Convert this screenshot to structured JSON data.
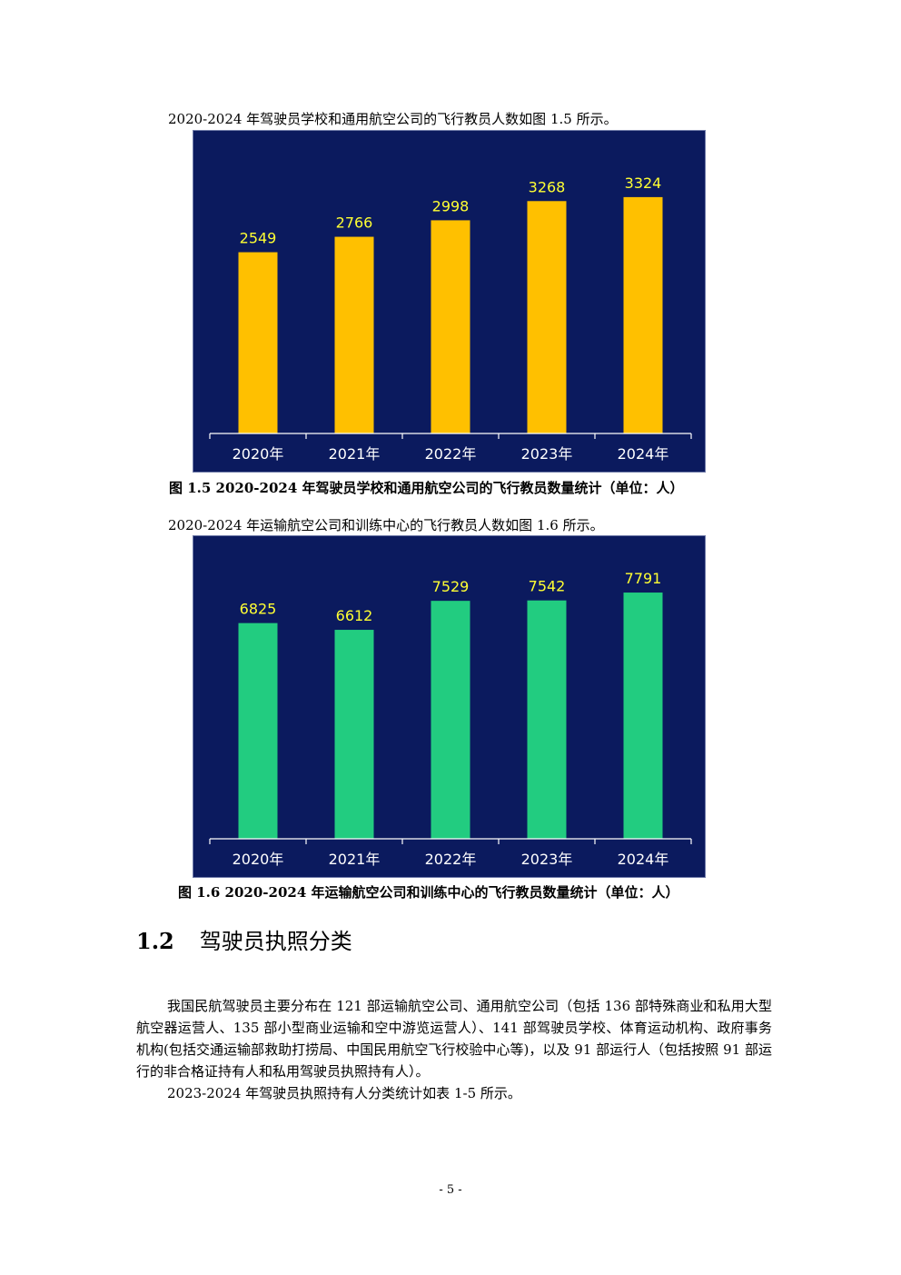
{
  "chart1_intro": "2020-2024 年驾驶员学校和通用航空公司的飞行教员人数如图 1.5 所示。",
  "chart1_caption": "图 1.5 2020-2024 年驾驶员学校和通用航空公司的飞行教员数量统计（单位：人）",
  "chart2_intro": "2020-2024 年运输航空公司和训练中心的飞行教员人数如图 1.6 所示。",
  "chart2_caption": "图 1.6 2020-2024 年运输航空公司和训练中心的飞行教员数量统计（单位：人）",
  "section": {
    "number": "1.2",
    "title": "驾驶员执照分类"
  },
  "paragraphs": [
    "我国民航驾驶员主要分布在 121 部运输航空公司、通用航空公司（包括 136 部特殊商业和私用大型航空器运营人、135 部小型商业运输和空中游览运营人）、141 部驾驶员学校、体育运动机构、政府事务机构(包括交通运输部救助打捞局、中国民用航空飞行校验中心等)，以及 91 部运行人（包括按照 91 部运行的非合格证持有人和私用驾驶员执照持有人）。",
    "2023-2024 年驾驶员执照持有人分类统计如表 1-5 所示。"
  ],
  "page_number": "- 5 -",
  "chart_data": [
    {
      "type": "bar",
      "categories": [
        "2020年",
        "2021年",
        "2022年",
        "2023年",
        "2024年"
      ],
      "values": [
        2549,
        2766,
        2998,
        3268,
        3324
      ],
      "bar_color": "#ffc000",
      "label_color": "#ffff33",
      "background": "#0b1a5e",
      "ylim": [
        0,
        4000
      ],
      "grid": false,
      "legend": "none"
    },
    {
      "type": "bar",
      "categories": [
        "2020年",
        "2021年",
        "2022年",
        "2023年",
        "2024年"
      ],
      "values": [
        6825,
        6612,
        7529,
        7542,
        7791
      ],
      "bar_color": "#22cc80",
      "label_color": "#ffff33",
      "background": "#0b1a5e",
      "ylim": [
        0,
        9000
      ],
      "grid": false,
      "legend": "none"
    }
  ]
}
